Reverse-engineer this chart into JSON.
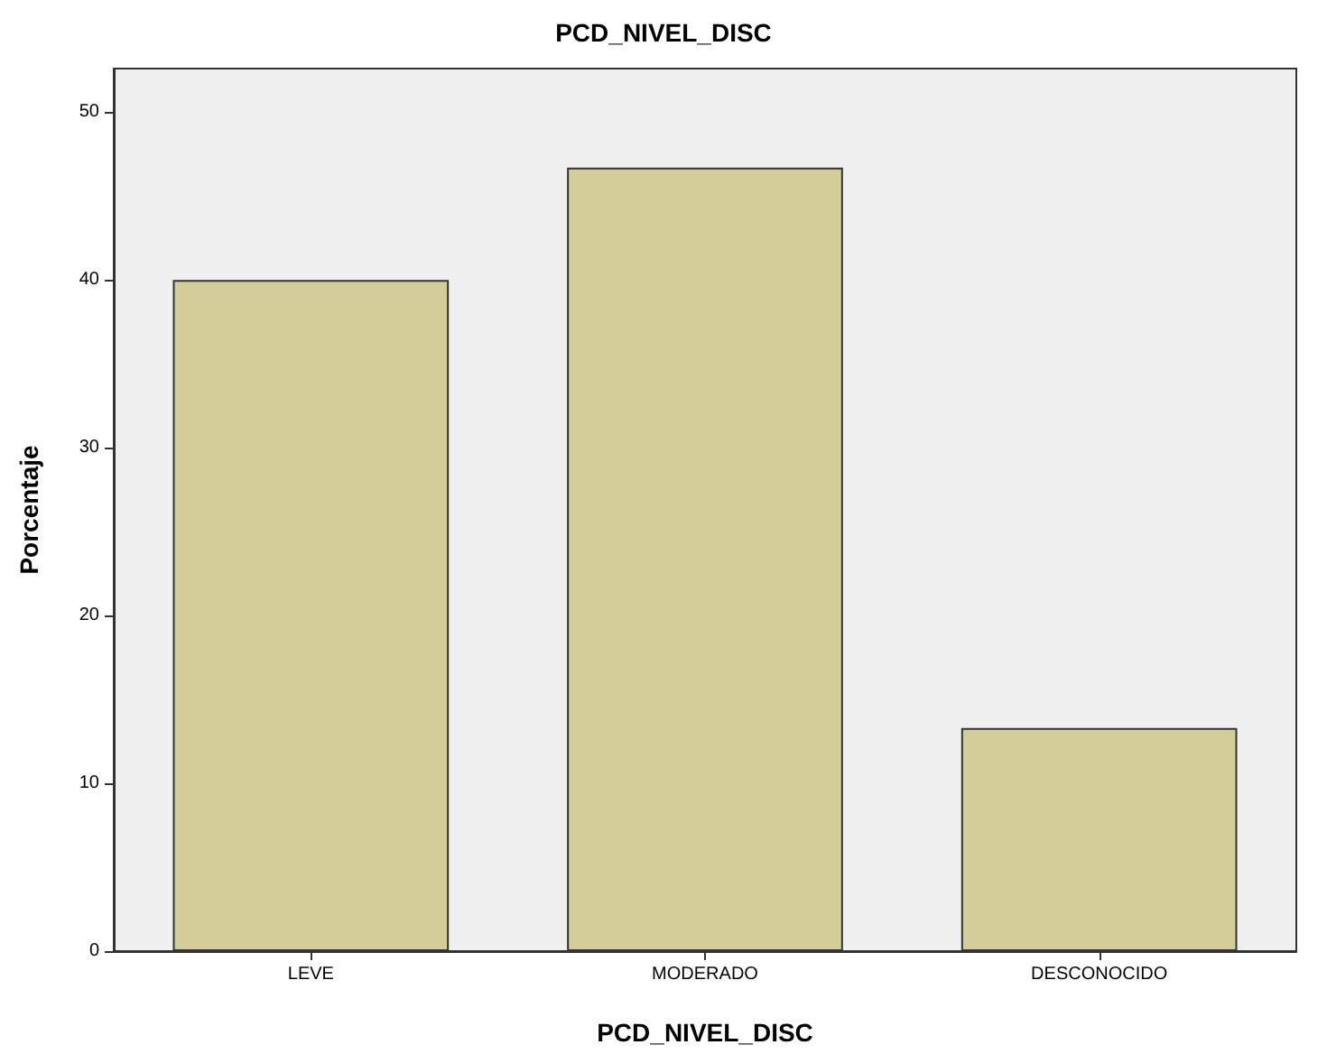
{
  "chart_data": {
    "type": "bar",
    "title": "PCD_NIVEL_DISC",
    "xlabel": "PCD_NIVEL_DISC",
    "ylabel": "Porcentaje",
    "categories": [
      "LEVE",
      "MODERADO",
      "DESCONOCIDO"
    ],
    "values": [
      40,
      46.7,
      13.3
    ],
    "color": "#d3ce97",
    "ylim": [
      0,
      52.6
    ],
    "yticks": [
      0,
      10,
      20,
      30,
      40,
      50
    ],
    "grid": false
  }
}
